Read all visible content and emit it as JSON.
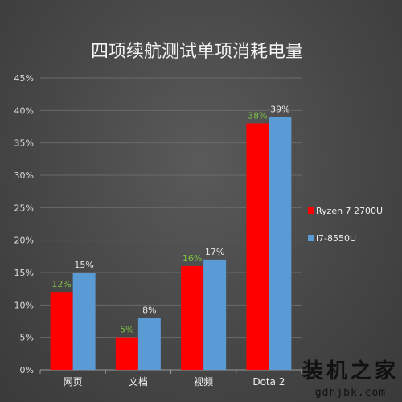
{
  "chart_data": {
    "type": "bar",
    "title": "四项续航测试单项消耗电量",
    "categories": [
      "网页",
      "文档",
      "视频",
      "Dota 2"
    ],
    "series": [
      {
        "name": "Ryzen 7 2700U",
        "values": [
          12,
          5,
          16,
          38
        ],
        "labels": [
          "12%",
          "5%",
          "16%",
          "38%"
        ],
        "color": "#ff0000",
        "label_color": "#7ec242"
      },
      {
        "name": "i7-8550U",
        "values": [
          15,
          8,
          17,
          39
        ],
        "labels": [
          "15%",
          "8%",
          "17%",
          "39%"
        ],
        "color": "#5b9bd5",
        "label_color": "#e6e6e6"
      }
    ],
    "ylim": [
      0,
      45
    ],
    "yticks": [
      "0%",
      "5%",
      "10%",
      "15%",
      "20%",
      "25%",
      "30%",
      "35%",
      "40%",
      "45%"
    ],
    "xlabel": "",
    "ylabel": "",
    "grid": true,
    "legend": "right",
    "grid_color": "#6a6a6a"
  },
  "watermark": {
    "text": "装机之家",
    "url": "gdhjbk.com"
  }
}
